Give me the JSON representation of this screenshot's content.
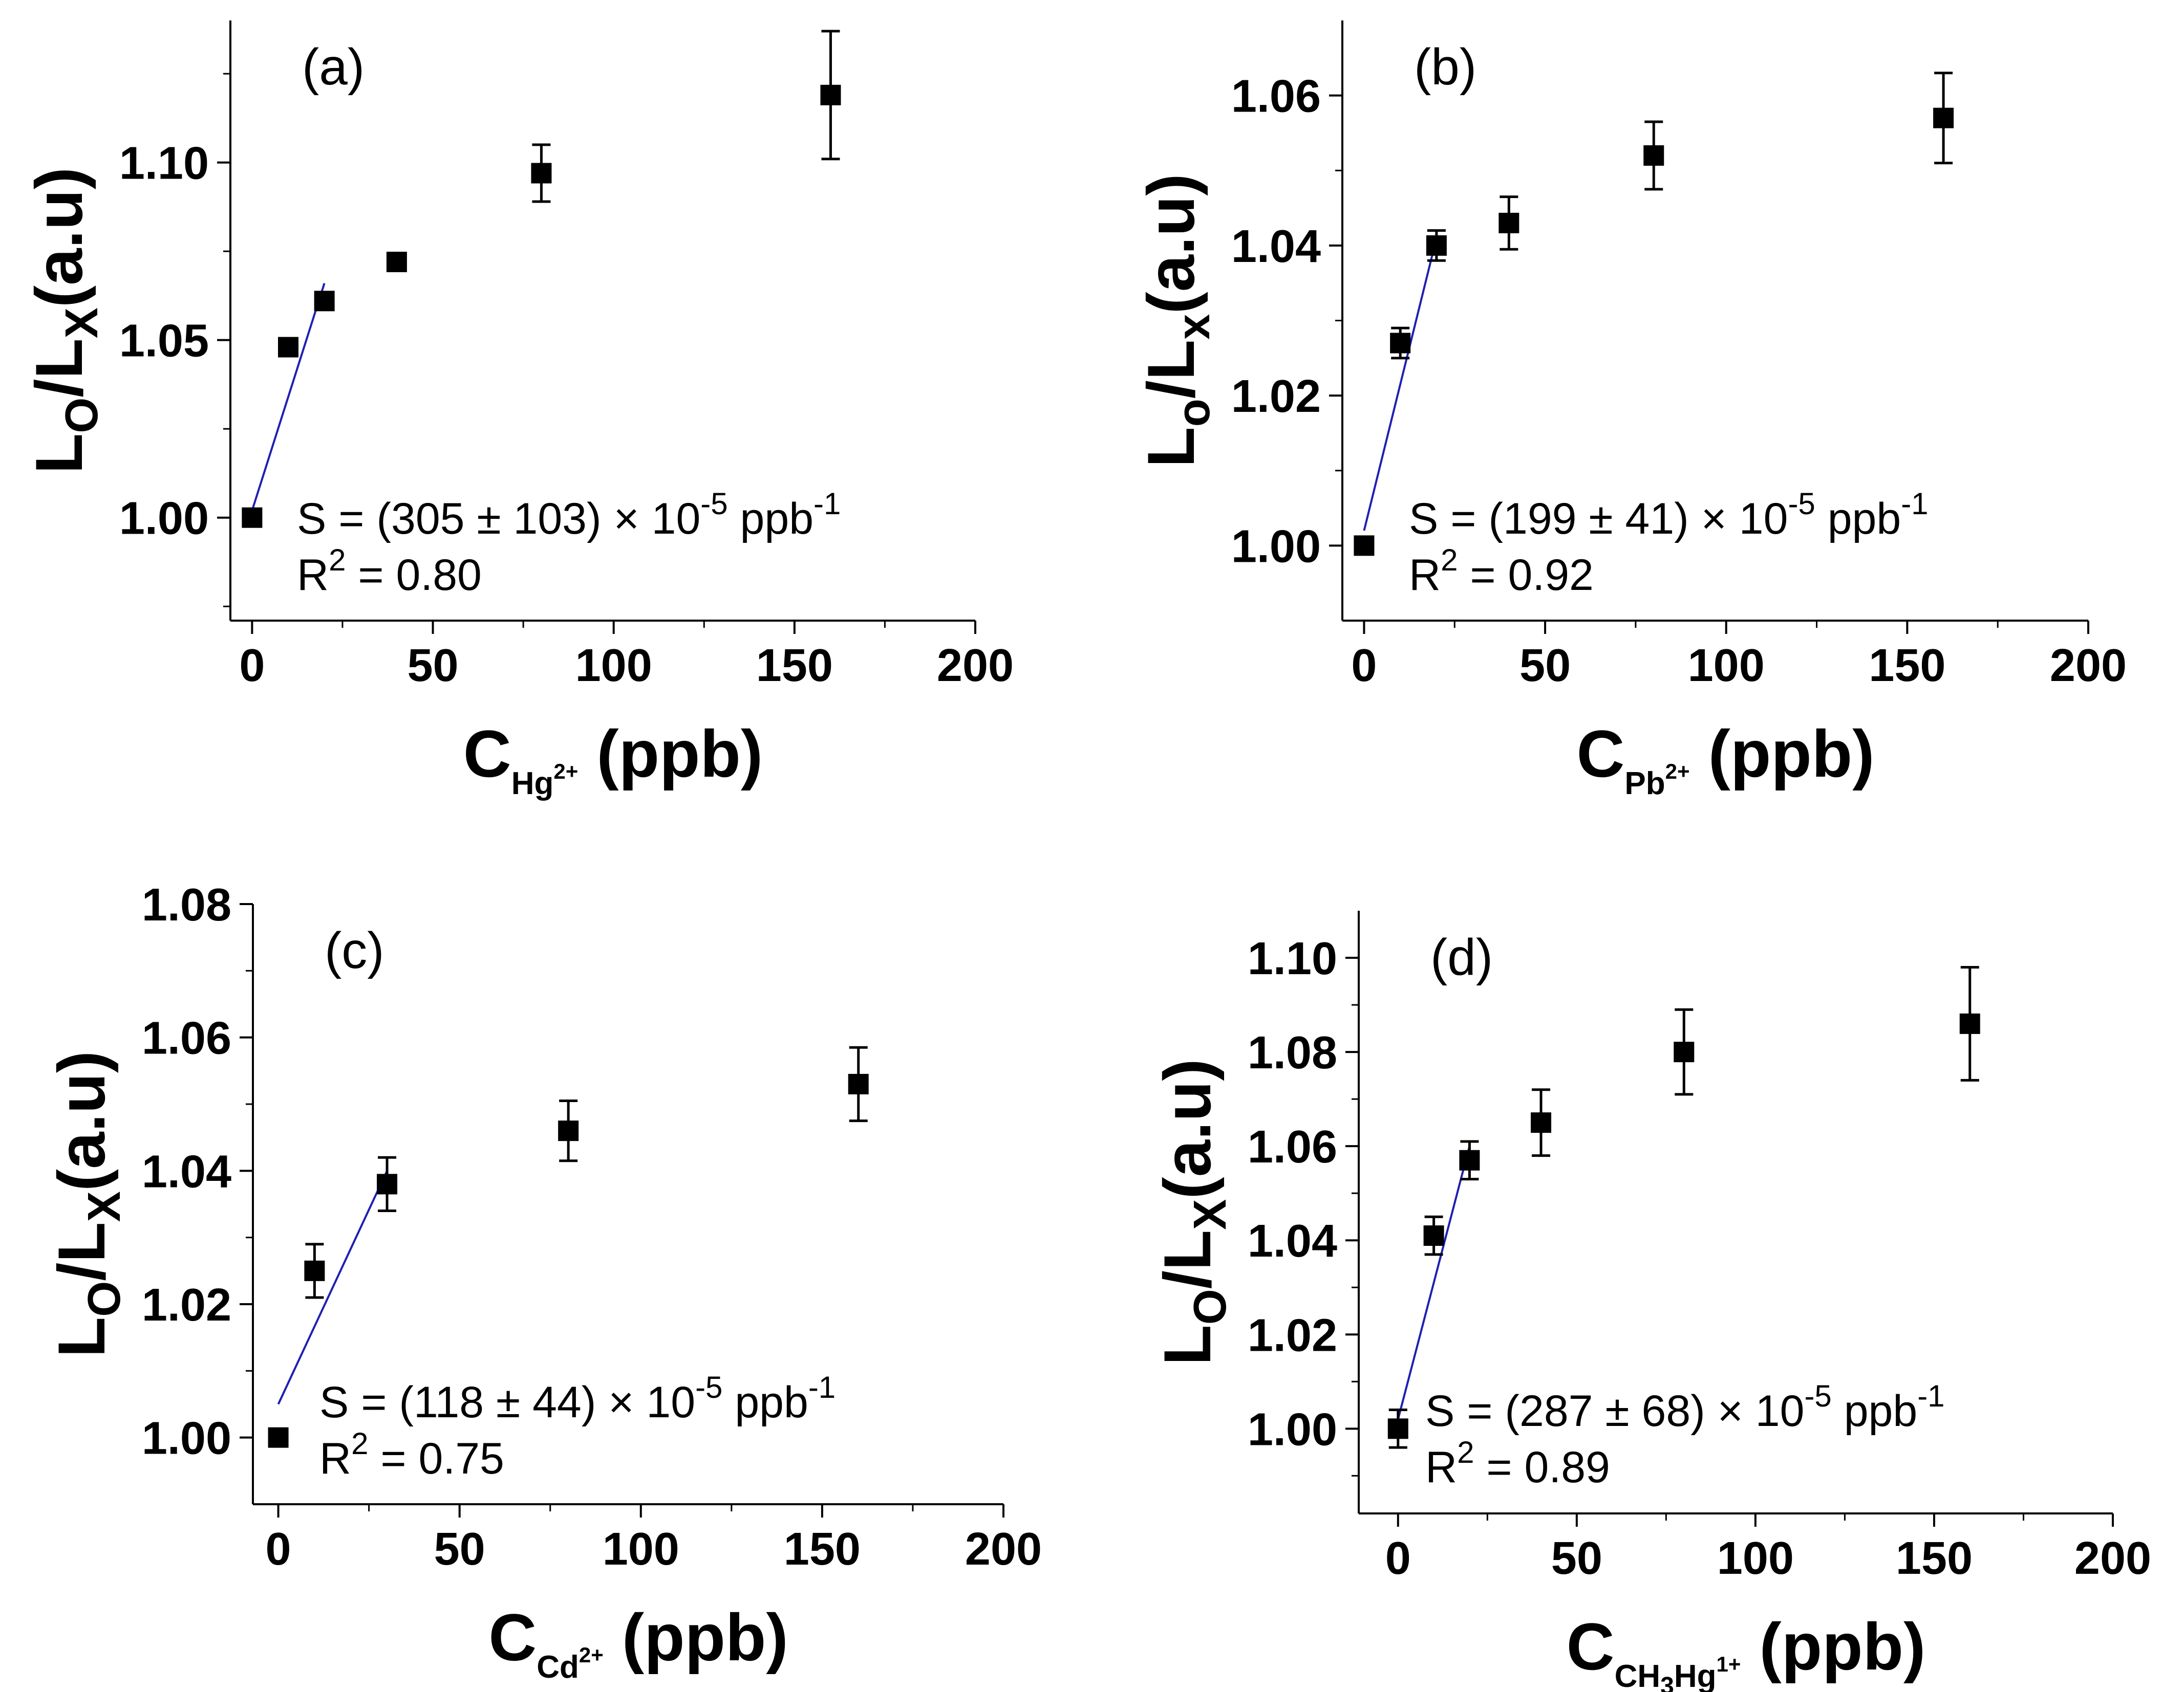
{
  "chart_data": [
    {
      "type": "scatter",
      "panel_label": "(a)",
      "x": [
        0,
        10,
        20,
        40,
        80,
        160
      ],
      "y": [
        1.0,
        1.048,
        1.061,
        1.072,
        1.097,
        1.119
      ],
      "yerr": [
        0,
        0,
        0,
        0,
        0.008,
        0.018
      ],
      "fit_line": {
        "x": [
          0,
          20
        ],
        "y": [
          1.002,
          1.066
        ]
      },
      "xlim": [
        -6,
        200
      ],
      "ylim": [
        0.971,
        1.14
      ],
      "xticks": [
        0,
        50,
        100,
        150,
        200
      ],
      "yticks": [
        1.0,
        1.05,
        1.1
      ],
      "ytick_labels": [
        "1.00",
        "1.05",
        "1.10"
      ],
      "ylabel": {
        "L": "L",
        "sub1": "O",
        "slash": "/L",
        "sub2": "X",
        "rest": "(a.u)"
      },
      "xlabel": {
        "main": "C",
        "sub": "Hg",
        "sup": "2+",
        "rest": " (ppb)"
      },
      "annotation": {
        "line1": "S = (305 ± 103) × 10",
        "exp": "-5",
        "unit": " ppb",
        "unit_exp": "-1",
        "r2_label": "R",
        "r2_exp": "2",
        "r2_value": " = 0.80"
      }
    },
    {
      "type": "scatter",
      "panel_label": "(b)",
      "x": [
        0,
        10,
        20,
        40,
        80,
        160
      ],
      "y": [
        1.0,
        1.027,
        1.04,
        1.043,
        1.052,
        1.057
      ],
      "yerr": [
        0,
        0.002,
        0.002,
        0.0035,
        0.0045,
        0.006
      ],
      "fit_line": {
        "x": [
          0,
          20
        ],
        "y": [
          1.002,
          1.041
        ]
      },
      "xlim": [
        -6,
        200
      ],
      "ylim": [
        0.99,
        1.07
      ],
      "xticks": [
        0,
        50,
        100,
        150,
        200
      ],
      "yticks": [
        1.0,
        1.02,
        1.04,
        1.06
      ],
      "ytick_labels": [
        "1.00",
        "1.02",
        "1.04",
        "1.06"
      ],
      "ylabel": {
        "L": "L",
        "sub1": "o",
        "slash": "/L",
        "sub2": "x",
        "rest": "(a.u)"
      },
      "xlabel": {
        "main": "C",
        "sub": "Pb",
        "sup": "2+",
        "rest": " (ppb)"
      },
      "annotation": {
        "line1": "S = (199 ± 41) × 10",
        "exp": "-5",
        "unit": " ppb",
        "unit_exp": "-1",
        "r2_label": "R",
        "r2_exp": "2",
        "r2_value": " = 0.92"
      }
    },
    {
      "type": "scatter",
      "panel_label": "(c)",
      "x": [
        0,
        10,
        30,
        80,
        160
      ],
      "y": [
        1.0,
        1.025,
        1.038,
        1.046,
        1.053
      ],
      "yerr": [
        0,
        0.004,
        0.004,
        0.0045,
        0.0055
      ],
      "fit_line": {
        "x": [
          0,
          30
        ],
        "y": [
          1.005,
          1.04
        ]
      },
      "xlim": [
        -7,
        200
      ],
      "ylim": [
        0.99,
        1.08
      ],
      "xticks": [
        0,
        50,
        100,
        150,
        200
      ],
      "yticks": [
        1.0,
        1.02,
        1.04,
        1.06,
        1.08
      ],
      "ytick_labels": [
        "1.00",
        "1.02",
        "1.04",
        "1.06",
        "1.08"
      ],
      "ylabel": {
        "L": "L",
        "sub1": "O",
        "slash": "/L",
        "sub2": "X",
        "rest": "(a.u)"
      },
      "xlabel": {
        "main": "C",
        "sub": "Cd",
        "sup": "2+",
        "rest": " (ppb)"
      },
      "annotation": {
        "line1": "S = (118 ± 44) × 10",
        "exp": "-5",
        "unit": " ppb",
        "unit_exp": "-1",
        "r2_label": "R",
        "r2_exp": "2",
        "r2_value": " = 0.75"
      }
    },
    {
      "type": "scatter",
      "panel_label": "(d)",
      "x": [
        0,
        10,
        20,
        40,
        80,
        160
      ],
      "y": [
        1.0,
        1.041,
        1.057,
        1.065,
        1.08,
        1.086
      ],
      "yerr": [
        0.004,
        0.004,
        0.004,
        0.007,
        0.009,
        0.012
      ],
      "fit_line": {
        "x": [
          0,
          20
        ],
        "y": [
          1.002,
          1.06
        ]
      },
      "xlim": [
        -11,
        200
      ],
      "ylim": [
        0.982,
        1.11
      ],
      "xticks": [
        0,
        50,
        100,
        150,
        200
      ],
      "yticks": [
        1.0,
        1.02,
        1.04,
        1.06,
        1.08,
        1.1
      ],
      "ytick_labels": [
        "1.00",
        "1.02",
        "1.04",
        "1.06",
        "1.08",
        "1.10"
      ],
      "ylabel": {
        "L": "L",
        "sub1": "O",
        "slash": "/L",
        "sub2": "X",
        "rest": "(a.u)"
      },
      "xlabel": {
        "main": "C",
        "sub": "CH",
        "sub_num": "3",
        "sub2": "Hg",
        "sup": "1+",
        "rest": " (ppb)"
      },
      "annotation": {
        "line1": "S = (287 ± 68) × 10",
        "exp": "-5",
        "unit": " ppb",
        "unit_exp": "-1",
        "r2_label": "R",
        "r2_exp": "2",
        "r2_value": " = 0.89"
      }
    }
  ],
  "colors": {
    "axis": "#000000",
    "marker": "#000000",
    "fit_line": "#1f1fb4"
  }
}
